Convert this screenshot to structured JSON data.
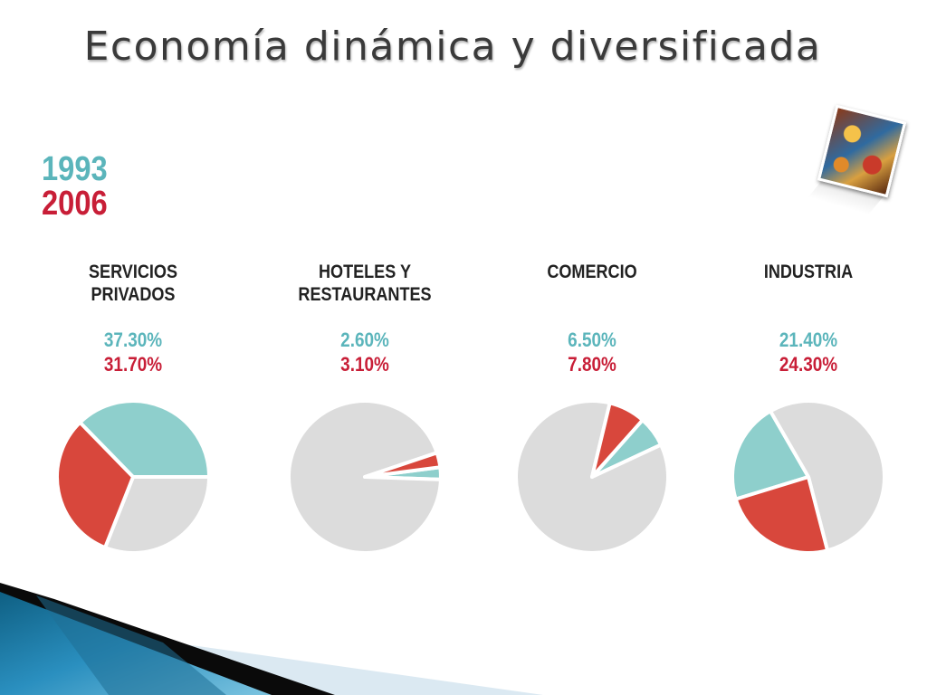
{
  "title": "Economía dinámica y diversificada",
  "legend": {
    "year1": "1993",
    "year2": "2006"
  },
  "colors": {
    "year1": "#8ecfcc",
    "year2": "#d8473c",
    "rest": "#dcdcdc",
    "year1_text": "#5bb5bb",
    "year2_text": "#c81e37"
  },
  "photo_icon": "photo-collage-icon",
  "chart_data": [
    {
      "type": "pie",
      "title": "SERVICIOS\nPRIVADOS",
      "labels": [
        "1993",
        "2006"
      ],
      "values": [
        37.3,
        31.7
      ],
      "value_labels": [
        "37.30%",
        "31.70%"
      ]
    },
    {
      "type": "pie",
      "title": "HOTELES Y\nRESTAURANTES",
      "labels": [
        "1993",
        "2006"
      ],
      "values": [
        2.6,
        3.1
      ],
      "value_labels": [
        "2.60%",
        "3.10%"
      ]
    },
    {
      "type": "pie",
      "title": "COMERCIO",
      "labels": [
        "1993",
        "2006"
      ],
      "values": [
        6.5,
        7.8
      ],
      "value_labels": [
        "6.50%",
        "7.80%"
      ]
    },
    {
      "type": "pie",
      "title": "INDUSTRIA",
      "labels": [
        "1993",
        "2006"
      ],
      "values": [
        21.4,
        24.3
      ],
      "value_labels": [
        "21.40%",
        "24.30%"
      ]
    }
  ]
}
